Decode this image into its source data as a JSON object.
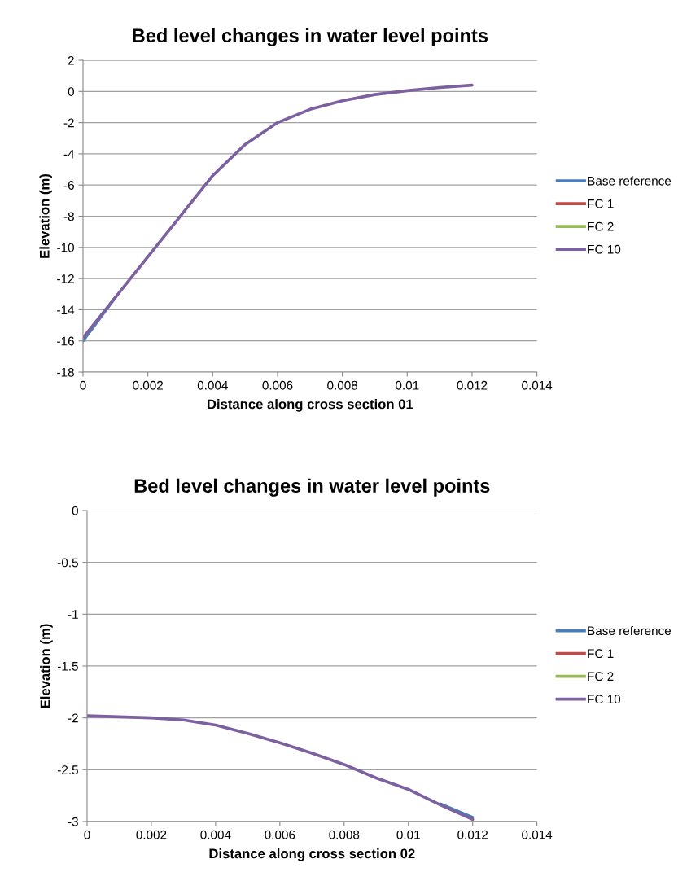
{
  "chart_data": [
    {
      "type": "line",
      "title": "Bed level changes in water level points",
      "xlabel": "Distance along cross section 01",
      "ylabel": "Elevation (m)",
      "x": [
        0,
        0.001,
        0.002,
        0.003,
        0.004,
        0.005,
        0.006,
        0.007,
        0.008,
        0.009,
        0.01,
        0.011,
        0.012
      ],
      "series": [
        {
          "name": "Base reference",
          "color": "#4a7ebb",
          "values": [
            -16,
            -13.2,
            null,
            null,
            null,
            null,
            null,
            null,
            null,
            null,
            null,
            null,
            null
          ]
        },
        {
          "name": "FC 1",
          "color": "#be4b48",
          "values": [
            null,
            null,
            null,
            null,
            null,
            null,
            null,
            null,
            null,
            null,
            null,
            null,
            null
          ]
        },
        {
          "name": "FC 2",
          "color": "#98b954",
          "values": [
            null,
            null,
            null,
            null,
            null,
            null,
            null,
            null,
            null,
            null,
            null,
            null,
            null
          ]
        },
        {
          "name": "FC 10",
          "color": "#7d60a0",
          "values": [
            -15.8,
            -13.2,
            -10.6,
            -8,
            -5.4,
            -3.4,
            -2,
            -1.15,
            -0.6,
            -0.2,
            0.05,
            0.25,
            0.4
          ]
        }
      ],
      "xlim": [
        0,
        0.014
      ],
      "xticks": [
        0,
        0.002,
        0.004,
        0.006,
        0.008,
        0.01,
        0.012,
        0.014
      ],
      "ylim": [
        -18,
        2
      ],
      "yticks": [
        -18,
        -16,
        -14,
        -12,
        -10,
        -8,
        -6,
        -4,
        -2,
        0,
        2
      ],
      "grid": "y",
      "legend": "right",
      "marker": "none",
      "line_style": "solid"
    },
    {
      "type": "line",
      "title": "Bed level changes in water level points",
      "xlabel": "Distance along cross section 02",
      "ylabel": "Elevation (m)",
      "x": [
        0,
        0.001,
        0.002,
        0.003,
        0.004,
        0.005,
        0.006,
        0.007,
        0.008,
        0.009,
        0.01,
        0.011,
        0.012
      ],
      "series": [
        {
          "name": "Base reference",
          "color": "#4a7ebb",
          "values": [
            null,
            null,
            null,
            null,
            null,
            null,
            null,
            null,
            null,
            null,
            null,
            -2.83,
            -2.96
          ]
        },
        {
          "name": "FC 1",
          "color": "#be4b48",
          "values": [
            null,
            null,
            null,
            null,
            null,
            null,
            null,
            null,
            null,
            null,
            null,
            null,
            null
          ]
        },
        {
          "name": "FC 2",
          "color": "#98b954",
          "values": [
            null,
            null,
            null,
            null,
            null,
            null,
            null,
            null,
            null,
            null,
            null,
            null,
            null
          ]
        },
        {
          "name": "FC 10",
          "color": "#7d60a0",
          "values": [
            -1.98,
            -1.99,
            -2.0,
            -2.02,
            -2.07,
            -2.15,
            -2.24,
            -2.34,
            -2.45,
            -2.58,
            -2.69,
            -2.84,
            -2.98
          ]
        }
      ],
      "xlim": [
        0,
        0.014
      ],
      "xticks": [
        0,
        0.002,
        0.004,
        0.006,
        0.008,
        0.01,
        0.012,
        0.014
      ],
      "ylim": [
        -3,
        0
      ],
      "yticks": [
        -3,
        -2.5,
        -2,
        -1.5,
        -1,
        -0.5,
        0
      ],
      "grid": "y",
      "legend": "right",
      "marker": "none",
      "line_style": "solid"
    }
  ]
}
